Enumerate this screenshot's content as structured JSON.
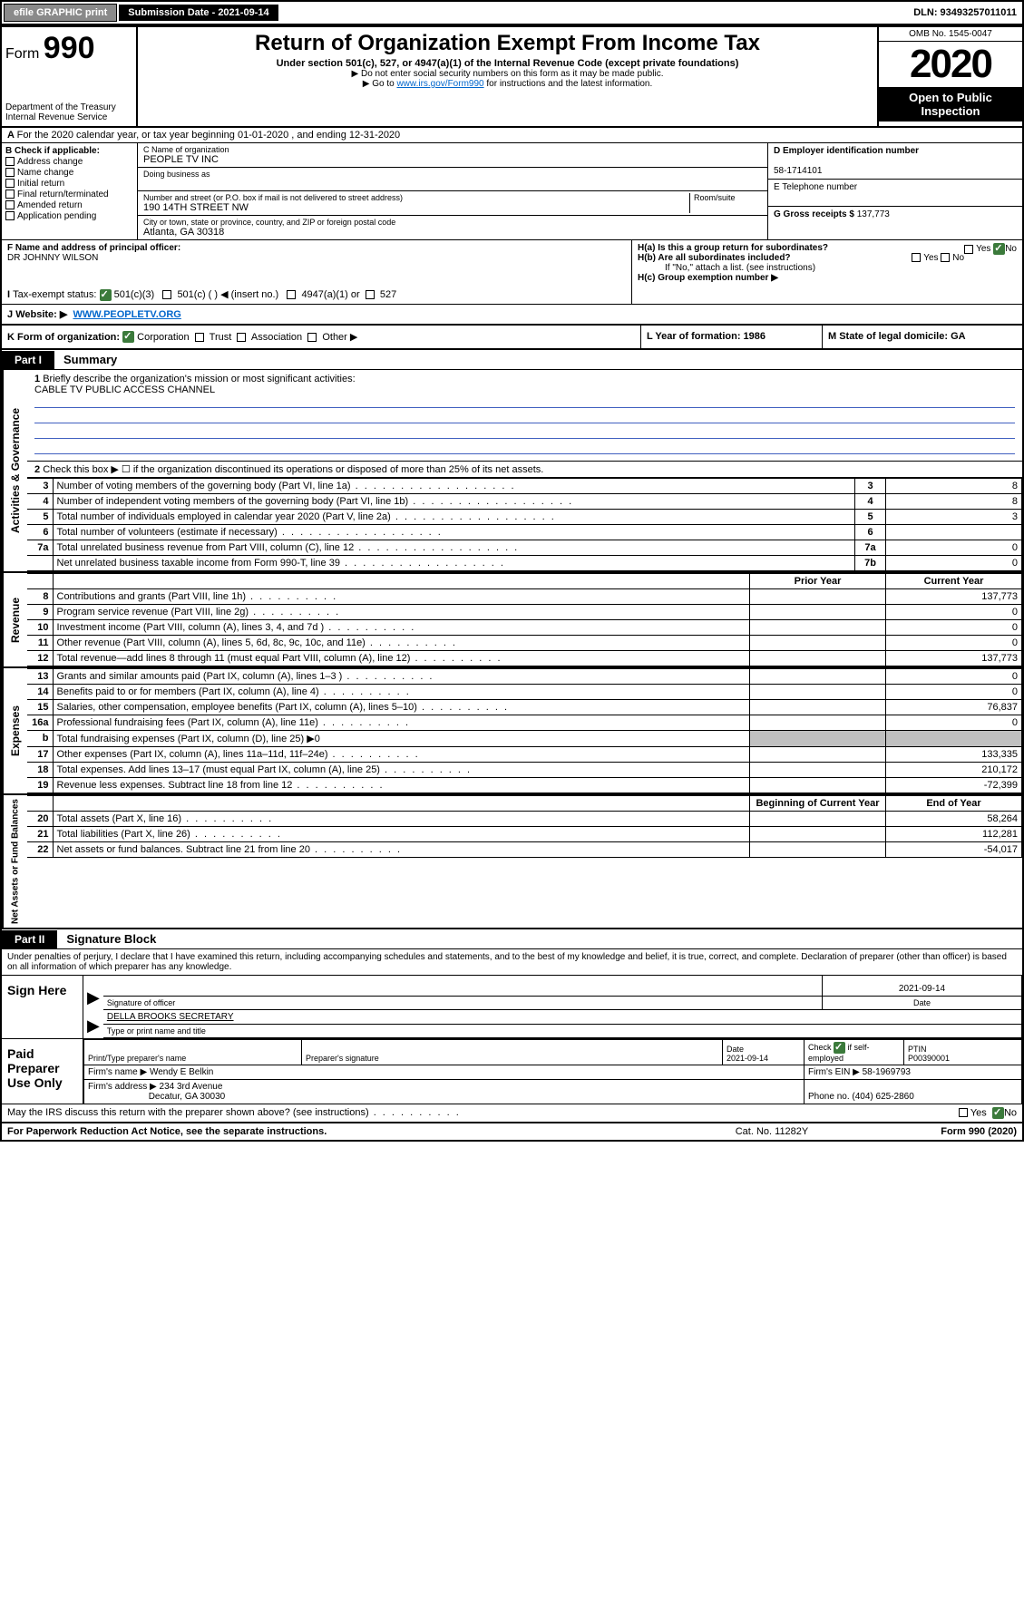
{
  "topbar": {
    "efile": "efile GRAPHIC print",
    "subdate_lbl": "Submission Date - 2021-09-14",
    "dln": "DLN: 93493257011011"
  },
  "header": {
    "form_prefix": "Form",
    "form_num": "990",
    "dept1": "Department of the Treasury",
    "dept2": "Internal Revenue Service",
    "title": "Return of Organization Exempt From Income Tax",
    "sub1": "Under section 501(c), 527, or 4947(a)(1) of the Internal Revenue Code (except private foundations)",
    "sub2": "▶ Do not enter social security numbers on this form as it may be made public.",
    "sub3a": "▶ Go to ",
    "sub3link": "www.irs.gov/Form990",
    "sub3b": " for instructions and the latest information.",
    "omb": "OMB No. 1545-0047",
    "year": "2020",
    "open": "Open to Public Inspection"
  },
  "A": {
    "text": "For the 2020 calendar year, or tax year beginning 01-01-2020     , and ending 12-31-2020"
  },
  "B": {
    "lbl": "B Check if applicable:",
    "o1": "Address change",
    "o2": "Name change",
    "o3": "Initial return",
    "o4": "Final return/terminated",
    "o5": "Amended return",
    "o6": "Application pending"
  },
  "C": {
    "name_lbl": "C Name of organization",
    "name": "PEOPLE TV INC",
    "dba_lbl": "Doing business as",
    "addr_lbl": "Number and street (or P.O. box if mail is not delivered to street address)",
    "room_lbl": "Room/suite",
    "addr": "190 14TH STREET NW",
    "city_lbl": "City or town, state or province, country, and ZIP or foreign postal code",
    "city": "Atlanta, GA  30318"
  },
  "D": {
    "lbl": "D Employer identification number",
    "val": "58-1714101"
  },
  "E": {
    "lbl": "E Telephone number",
    "val": ""
  },
  "G": {
    "lbl": "G Gross receipts $",
    "val": "137,773"
  },
  "F": {
    "lbl": "F  Name and address of principal officer:",
    "val": "DR JOHNNY WILSON"
  },
  "H": {
    "a": "H(a)  Is this a group return for subordinates?",
    "b": "H(b)  Are all subordinates included?",
    "bnote": "If \"No,\" attach a list. (see instructions)",
    "c": "H(c)  Group exemption number ▶",
    "yes": "Yes",
    "no": "No"
  },
  "I": {
    "lbl": "Tax-exempt status:",
    "o1": "501(c)(3)",
    "o2": "501(c) (  ) ◀ (insert no.)",
    "o3": "4947(a)(1) or",
    "o4": "527"
  },
  "J": {
    "lbl": "Website: ▶",
    "val": "WWW.PEOPLETV.ORG"
  },
  "K": {
    "lbl": "K Form of organization:",
    "o1": "Corporation",
    "o2": "Trust",
    "o3": "Association",
    "o4": "Other ▶",
    "L": "L Year of formation: 1986",
    "M": "M State of legal domicile: GA"
  },
  "partI": {
    "tab": "Part I",
    "title": "Summary"
  },
  "summary": {
    "q1": "Briefly describe the organization's mission or most significant activities:",
    "mission": "CABLE TV PUBLIC ACCESS CHANNEL",
    "q2": "Check this box ▶ ☐  if the organization discontinued its operations or disposed of more than 25% of its net assets.",
    "rows_gov": [
      {
        "n": "3",
        "d": "Number of voting members of the governing body (Part VI, line 1a)",
        "ln": "3",
        "v": "8"
      },
      {
        "n": "4",
        "d": "Number of independent voting members of the governing body (Part VI, line 1b)",
        "ln": "4",
        "v": "8"
      },
      {
        "n": "5",
        "d": "Total number of individuals employed in calendar year 2020 (Part V, line 2a)",
        "ln": "5",
        "v": "3"
      },
      {
        "n": "6",
        "d": "Total number of volunteers (estimate if necessary)",
        "ln": "6",
        "v": ""
      },
      {
        "n": "7a",
        "d": "Total unrelated business revenue from Part VIII, column (C), line 12",
        "ln": "7a",
        "v": "0"
      },
      {
        "n": "",
        "d": "Net unrelated business taxable income from Form 990-T, line 39",
        "ln": "7b",
        "v": "0"
      }
    ],
    "hdr_prior": "Prior Year",
    "hdr_curr": "Current Year",
    "rows_rev": [
      {
        "n": "8",
        "d": "Contributions and grants (Part VIII, line 1h)",
        "p": "",
        "c": "137,773"
      },
      {
        "n": "9",
        "d": "Program service revenue (Part VIII, line 2g)",
        "p": "",
        "c": "0"
      },
      {
        "n": "10",
        "d": "Investment income (Part VIII, column (A), lines 3, 4, and 7d )",
        "p": "",
        "c": "0"
      },
      {
        "n": "11",
        "d": "Other revenue (Part VIII, column (A), lines 5, 6d, 8c, 9c, 10c, and 11e)",
        "p": "",
        "c": "0"
      },
      {
        "n": "12",
        "d": "Total revenue—add lines 8 through 11 (must equal Part VIII, column (A), line 12)",
        "p": "",
        "c": "137,773"
      }
    ],
    "rows_exp": [
      {
        "n": "13",
        "d": "Grants and similar amounts paid (Part IX, column (A), lines 1–3 )",
        "p": "",
        "c": "0"
      },
      {
        "n": "14",
        "d": "Benefits paid to or for members (Part IX, column (A), line 4)",
        "p": "",
        "c": "0"
      },
      {
        "n": "15",
        "d": "Salaries, other compensation, employee benefits (Part IX, column (A), lines 5–10)",
        "p": "",
        "c": "76,837"
      },
      {
        "n": "16a",
        "d": "Professional fundraising fees (Part IX, column (A), line 11e)",
        "p": "",
        "c": "0"
      },
      {
        "n": "b",
        "d": "Total fundraising expenses (Part IX, column (D), line 25) ▶0",
        "p": "grey",
        "c": "grey"
      },
      {
        "n": "17",
        "d": "Other expenses (Part IX, column (A), lines 11a–11d, 11f–24e)",
        "p": "",
        "c": "133,335"
      },
      {
        "n": "18",
        "d": "Total expenses. Add lines 13–17 (must equal Part IX, column (A), line 25)",
        "p": "",
        "c": "210,172"
      },
      {
        "n": "19",
        "d": "Revenue less expenses. Subtract line 18 from line 12",
        "p": "",
        "c": "-72,399"
      }
    ],
    "hdr_boy": "Beginning of Current Year",
    "hdr_eoy": "End of Year",
    "rows_na": [
      {
        "n": "20",
        "d": "Total assets (Part X, line 16)",
        "p": "",
        "c": "58,264"
      },
      {
        "n": "21",
        "d": "Total liabilities (Part X, line 26)",
        "p": "",
        "c": "112,281"
      },
      {
        "n": "22",
        "d": "Net assets or fund balances. Subtract line 21 from line 20",
        "p": "",
        "c": "-54,017"
      }
    ],
    "side_gov": "Activities & Governance",
    "side_rev": "Revenue",
    "side_exp": "Expenses",
    "side_na": "Net Assets or Fund Balances"
  },
  "partII": {
    "tab": "Part II",
    "title": "Signature Block"
  },
  "sig": {
    "para": "Under penalties of perjury, I declare that I have examined this return, including accompanying schedules and statements, and to the best of my knowledge and belief, it is true, correct, and complete. Declaration of preparer (other than officer) is based on all information of which preparer has any knowledge.",
    "signhere": "Sign Here",
    "sigoff": "Signature of officer",
    "date": "2021-09-14",
    "datelbl": "Date",
    "name": "DELLA BROOKS  SECRETARY",
    "namelbl": "Type or print name and title",
    "paid": "Paid Preparer Use Only",
    "prep_name_lbl": "Print/Type preparer's name",
    "prep_sig_lbl": "Preparer's signature",
    "prep_date_lbl": "Date",
    "prep_date": "2021-09-14",
    "prep_check": "Check ☑ if self-employed",
    "ptin_lbl": "PTIN",
    "ptin": "P00390001",
    "firm_name_lbl": "Firm's name    ▶",
    "firm_name": "Wendy E Belkin",
    "firm_ein_lbl": "Firm's EIN ▶",
    "firm_ein": "58-1969793",
    "firm_addr_lbl": "Firm's address ▶",
    "firm_addr1": "234 3rd Avenue",
    "firm_addr2": "Decatur, GA  30030",
    "firm_phone_lbl": "Phone no.",
    "firm_phone": "(404) 625-2860",
    "discuss": "May the IRS discuss this return with the preparer shown above? (see instructions)"
  },
  "footer": {
    "l": "For Paperwork Reduction Act Notice, see the separate instructions.",
    "m": "Cat. No. 11282Y",
    "r": "Form 990 (2020)"
  }
}
